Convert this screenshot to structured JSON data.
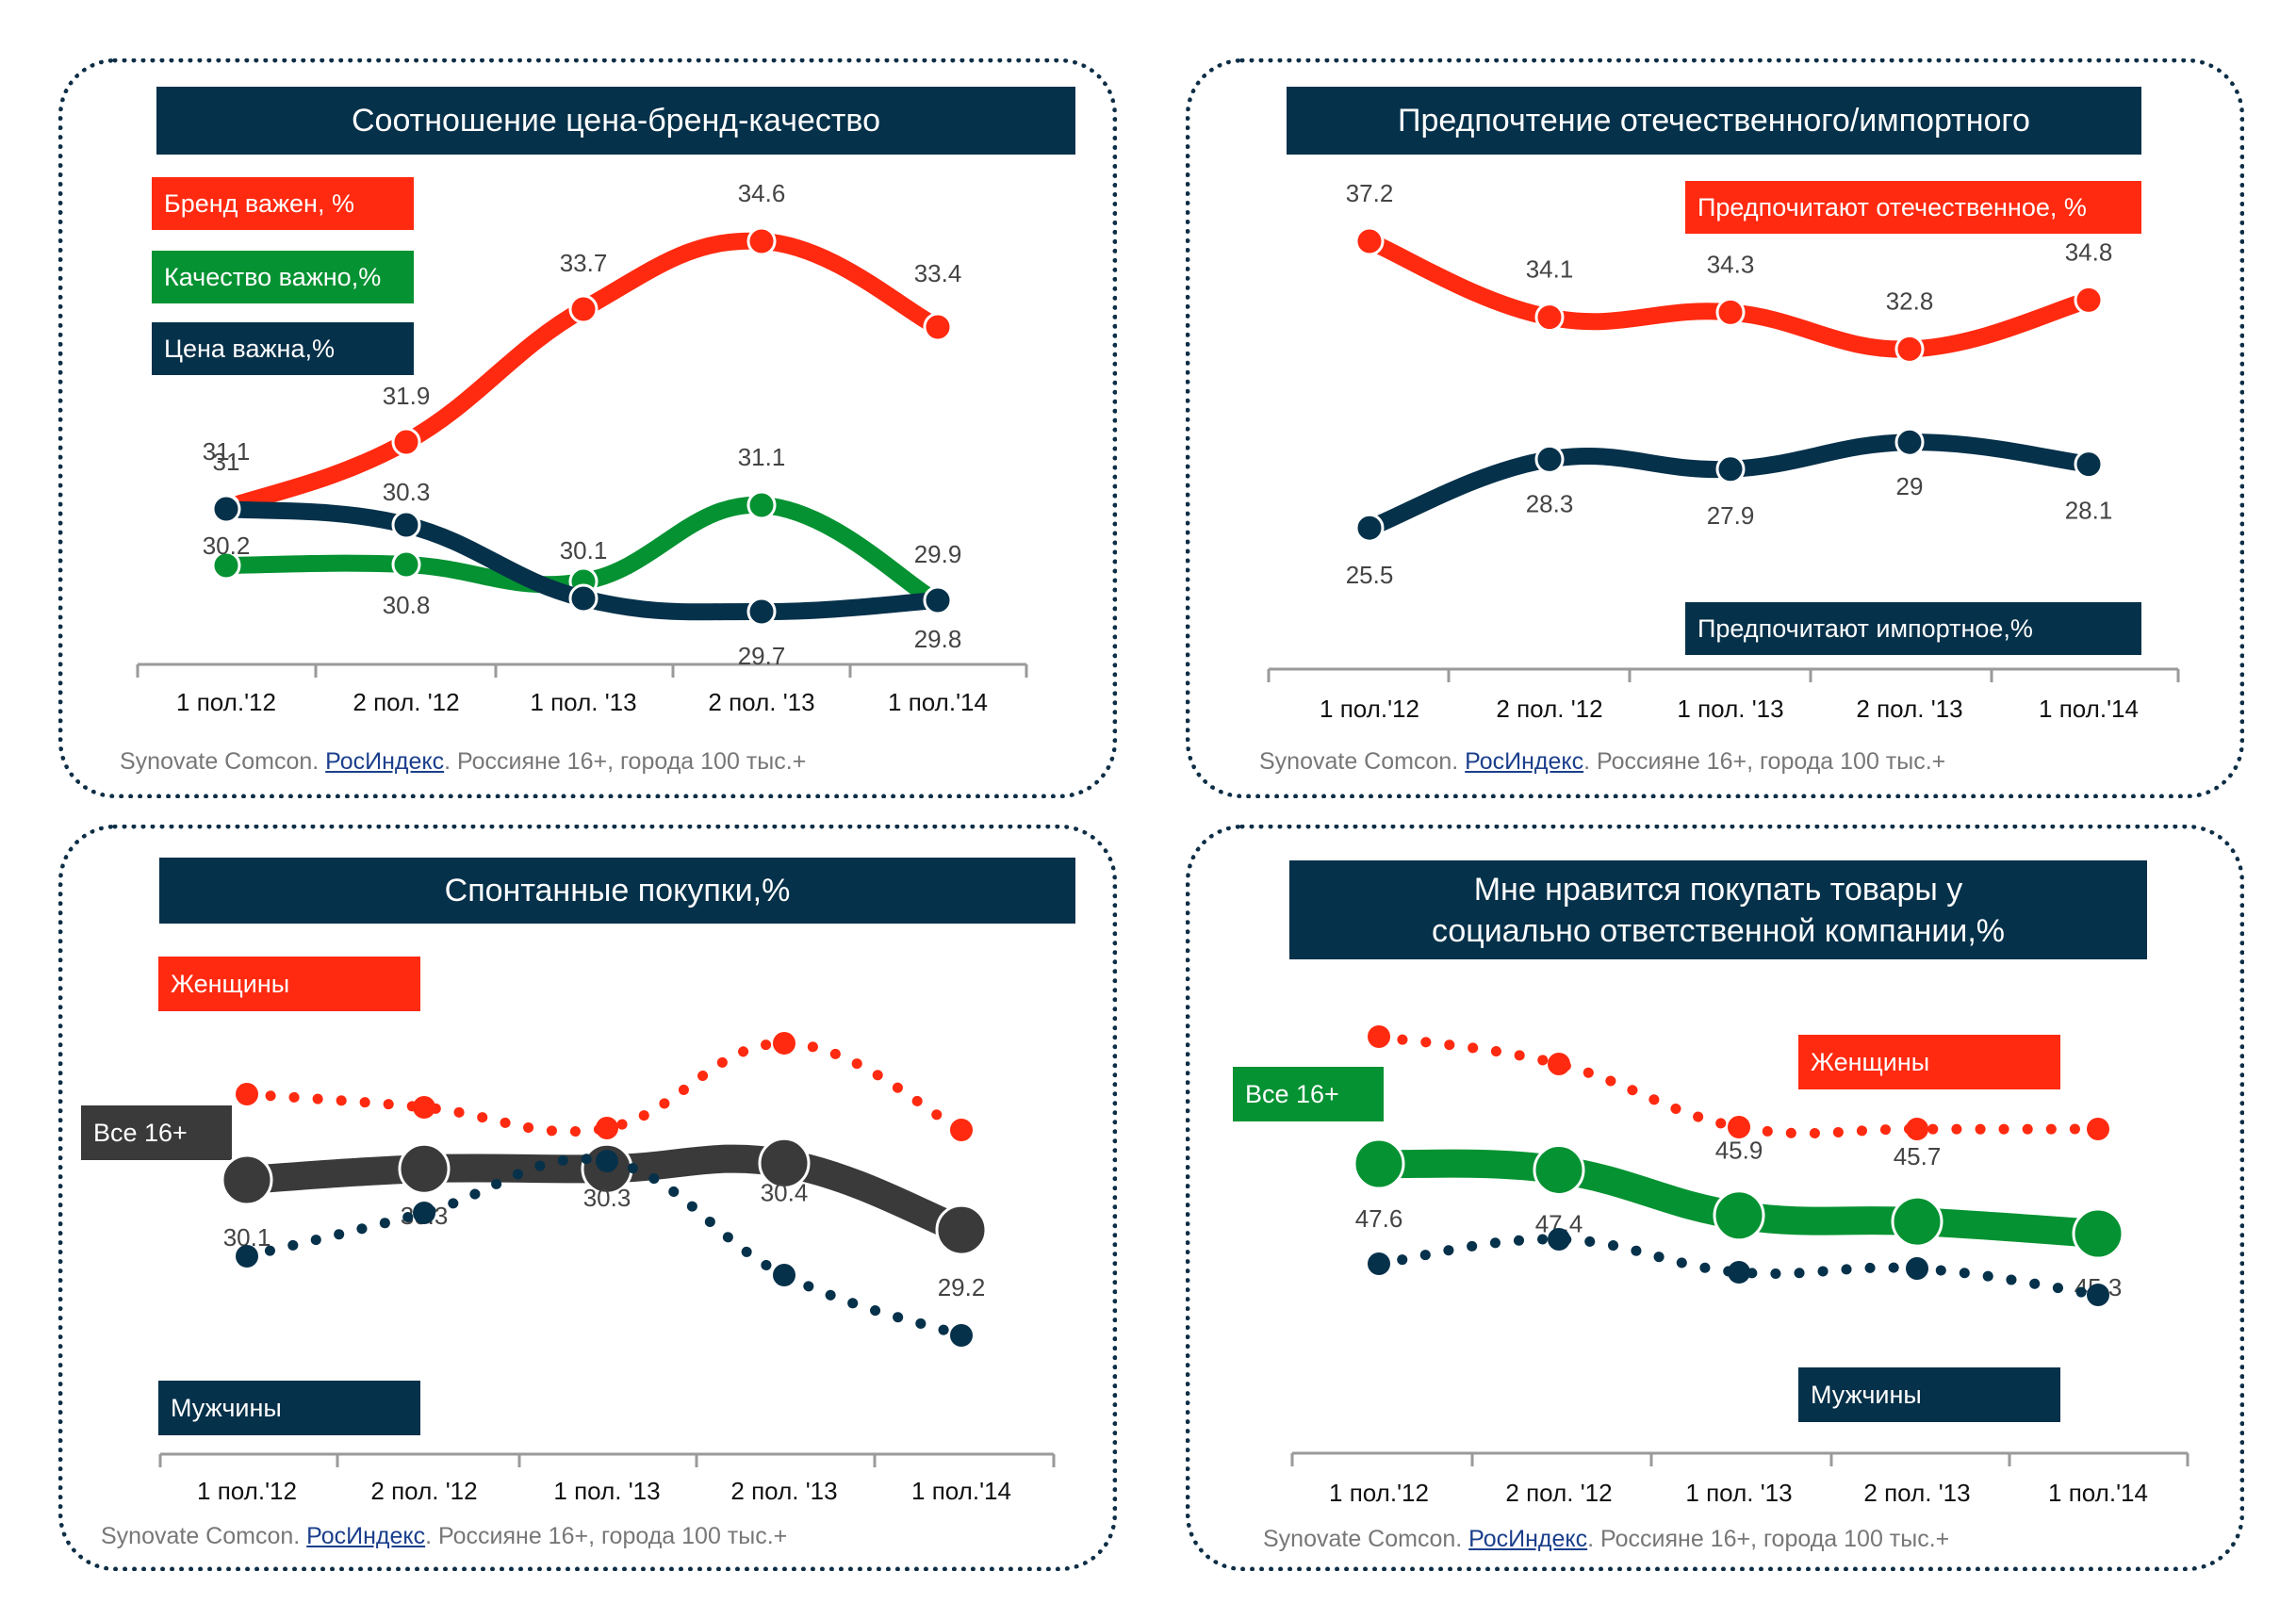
{
  "colors": {
    "navy": "#06314a",
    "red": "#ff2a10",
    "green": "#059232",
    "dark_gray": "#3a3a3a",
    "frame": "#0d2e46",
    "source_text": "#777777",
    "source_link": "#1b3f8c"
  },
  "source": {
    "prefix": "Synovate Comcon. ",
    "link": "РосИндекс",
    "suffix": ". Россияне 16+, города 100 тыс.+"
  },
  "panels": [
    {
      "title": "Соотношение цена-бренд-качество",
      "legend": [
        {
          "label": "Бренд важен, %",
          "color": "#ff2a10"
        },
        {
          "label": "Качество важно,%",
          "color": "#059232"
        },
        {
          "label": "Цена важна,%",
          "color": "#06314a"
        }
      ]
    },
    {
      "title": "Предпочтение отечественного/импортного",
      "legend": [
        {
          "label": "Предпочитают отечественное, %",
          "color": "#ff2a10"
        },
        {
          "label": "Предпочитают импортное,%",
          "color": "#06314a"
        }
      ]
    },
    {
      "title": "Спонтанные покупки,%",
      "legend": [
        {
          "label": "Женщины",
          "color": "#ff2a10"
        },
        {
          "label": "Все 16+",
          "color": "#3a3a3a"
        },
        {
          "label": "Мужчины",
          "color": "#06314a"
        }
      ]
    },
    {
      "title": "Мне нравится покупать товары у\nсоциально ответственной компании,%",
      "legend": [
        {
          "label": "Женщины",
          "color": "#ff2a10"
        },
        {
          "label": "Все 16+",
          "color": "#059232"
        },
        {
          "label": "Мужчины",
          "color": "#06314a"
        }
      ]
    }
  ],
  "chart_data": [
    {
      "type": "line",
      "title": "Соотношение цена-бренд-качество",
      "categories": [
        "1 пол.'12",
        "2 пол. '12",
        "1 пол. '13",
        "2 пол. '13",
        "1 пол.'14"
      ],
      "series": [
        {
          "name": "Бренд важен, %",
          "color": "#ff2a10",
          "values": [
            31,
            31.9,
            33.7,
            34.6,
            33.4
          ],
          "labels": [
            "31",
            "31.9",
            "33.7",
            "34.6",
            "33.4"
          ],
          "style": "solid"
        },
        {
          "name": "Качество важно,%",
          "color": "#059232",
          "values": [
            30.2,
            30.8,
            29.9,
            31.1,
            29.8
          ],
          "labels": [
            "30.2",
            "30.8",
            "",
            "31.1",
            "29.8"
          ],
          "style": "solid"
        },
        {
          "name": "Цена важна,%",
          "color": "#06314a",
          "values": [
            31.1,
            30.3,
            30.1,
            29.7,
            29.9
          ],
          "labels": [
            "31.1",
            "30.3",
            "30.1",
            "29.7",
            "29.9"
          ],
          "style": "solid"
        }
      ],
      "legend": "top-left",
      "grid": false
    },
    {
      "type": "line",
      "title": "Предпочтение отечественного/импортного",
      "categories": [
        "1 пол.'12",
        "2 пол. '12",
        "1 пол. '13",
        "2 пол. '13",
        "1 пол.'14"
      ],
      "series": [
        {
          "name": "Предпочитают отечественное, %",
          "color": "#ff2a10",
          "values": [
            37.2,
            34.1,
            34.3,
            32.8,
            34.8
          ],
          "labels": [
            "37.2",
            "34.1",
            "34.3",
            "32.8",
            "34.8"
          ],
          "style": "solid"
        },
        {
          "name": "Предпочитают импортное,%",
          "color": "#06314a",
          "values": [
            25.5,
            28.3,
            27.9,
            29,
            28.1
          ],
          "labels": [
            "25.5",
            "28.3",
            "27.9",
            "29",
            "28.1"
          ],
          "style": "solid"
        }
      ],
      "legend": "right",
      "grid": false
    },
    {
      "type": "line",
      "title": "Спонтанные покупки,%",
      "categories": [
        "1 пол.'12",
        "2 пол. '12",
        "1 пол. '13",
        "2 пол. '13",
        "1 пол.'14"
      ],
      "series": [
        {
          "name": "Женщины",
          "color": "#ff2a10",
          "values": [
            31.4,
            31.2,
            30.9,
            31.8,
            30.5
          ],
          "labels": [
            "",
            "",
            "",
            "",
            ""
          ],
          "style": "dotted"
        },
        {
          "name": "Все 16+",
          "color": "#3a3a3a",
          "values": [
            30.1,
            30.3,
            30.3,
            30.4,
            29.2
          ],
          "labels": [
            "30.1",
            "30.3",
            "30.3",
            "30.4",
            "29.2"
          ],
          "style": "solid-thick"
        },
        {
          "name": "Мужчины",
          "color": "#06314a",
          "values": [
            28.7,
            29.4,
            30.0,
            28.4,
            27.5
          ],
          "labels": [
            "",
            "",
            "",
            "",
            ""
          ],
          "style": "dotted"
        }
      ],
      "legend": "left",
      "grid": false
    },
    {
      "type": "line",
      "title": "Мне нравится покупать товары у\nсоциально ответственной компании,%",
      "categories": [
        "1 пол.'12",
        "2 пол. '12",
        "1 пол. '13",
        "2 пол. '13",
        "1 пол.'14"
      ],
      "series": [
        {
          "name": "Женщины",
          "color": "#ff2a10",
          "values": [
            50.8,
            50.0,
            48.8,
            48.6,
            48.6
          ],
          "labels": [
            "",
            "",
            "",
            "",
            ""
          ],
          "style": "dotted"
        },
        {
          "name": "Все 16+",
          "color": "#059232",
          "values": [
            47.6,
            47.4,
            45.9,
            45.7,
            45.3
          ],
          "labels": [
            "47.6",
            "47.4",
            "45.9",
            "45.7",
            "45.3"
          ],
          "style": "solid-thick"
        },
        {
          "name": "Мужчины",
          "color": "#06314a",
          "values": [
            44.2,
            44.8,
            43.7,
            43.8,
            43.0
          ],
          "labels": [
            "",
            "",
            "",
            "",
            ""
          ],
          "style": "dotted"
        }
      ],
      "legend": "right",
      "grid": false
    }
  ]
}
